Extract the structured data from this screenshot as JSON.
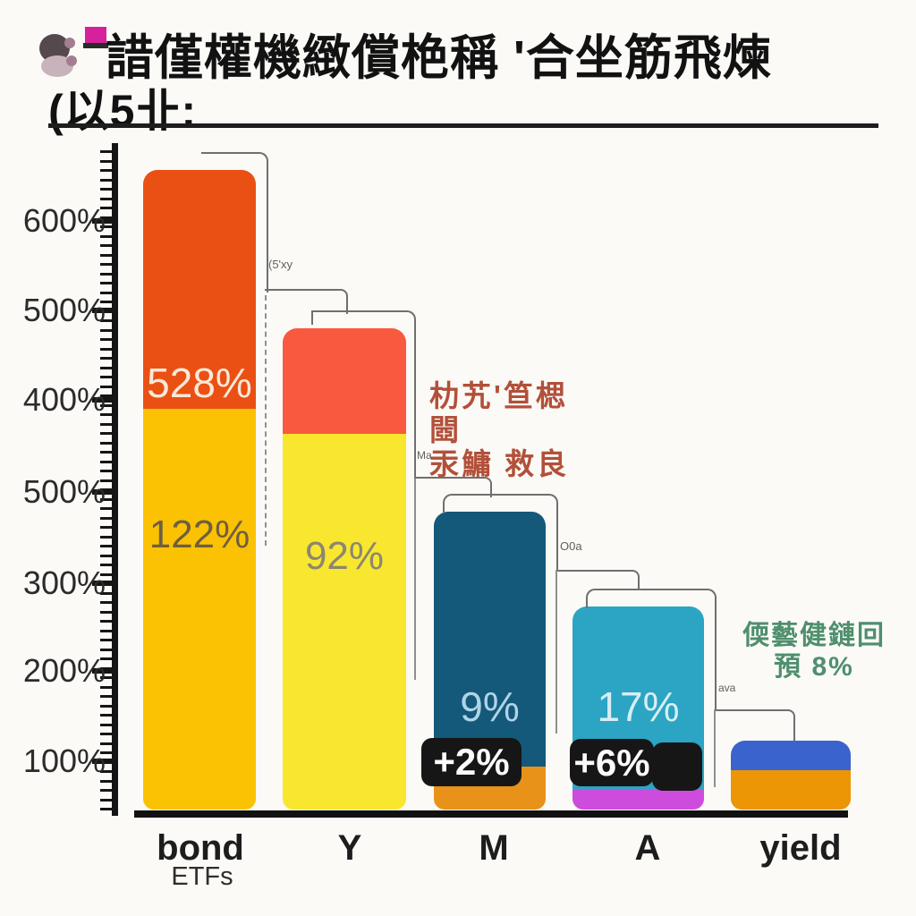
{
  "note": "AI-generated stylized bar chart; CJK-looking strings are garbled glyphs approximated below",
  "title": {
    "line1": "諎僅權機緻償栬稱 '合坐筋飛煉",
    "line2": "(以5卝:"
  },
  "decor": {
    "magenta_square_color": "#d6219c",
    "dark_blob_color": "#55494e",
    "light_blob_color": "#c8b3bc",
    "dot_color": "#a47d92"
  },
  "chart_data": {
    "type": "bar",
    "title": "garbled pseudo-CJK heading (see title.line1/line2)",
    "xlabel": "",
    "ylabel": "",
    "grid": false,
    "legend": "none",
    "y_tick_labels": [
      "600%",
      "500%",
      "400%",
      "500%",
      "300%",
      "200%",
      "100%"
    ],
    "y_axis_note": "tick labels repeat 500% twice (image artifact); minor ticks between majors",
    "categories": [
      "bond ETFs",
      "Y",
      "M",
      "A",
      "yield"
    ],
    "approx_bar_top_axis_value": [
      655,
      480,
      335,
      230,
      90
    ],
    "bars": [
      {
        "category": "bond ETFs",
        "top_color": "#ea5014",
        "bottom_color": "#fbc203",
        "labels": [
          "528%",
          "122%"
        ]
      },
      {
        "category": "Y",
        "top_color": "#f95a3f",
        "bottom_color": "#f8e72e",
        "labels": [
          "92%"
        ]
      },
      {
        "category": "M",
        "top_color": "#14587a",
        "bottom_color": "#e8921a",
        "labels": [
          "9%"
        ]
      },
      {
        "category": "A",
        "top_color": "#2ba5c3",
        "bottom_color": "#cd4cde",
        "labels": [
          "17%"
        ]
      },
      {
        "category": "yield",
        "top_color": "#3a63ce",
        "bottom_color": "#ec9505",
        "labels": []
      }
    ],
    "badges": [
      {
        "label": "+2%"
      },
      {
        "label": "+6%"
      },
      {
        "label": ""
      }
    ],
    "connector_labels": [
      "(5'xy",
      "Ma",
      "O0a",
      "ava"
    ],
    "annotations": [
      {
        "id": "mid-red",
        "lines": [
          "朸艽'笪楒閸",
          "汞鱅 救良"
        ],
        "color": "#b2503a"
      },
      {
        "id": "right-green",
        "lines": [
          "偄藝健鏈回",
          "預 8%"
        ],
        "color": "#4f8f6d"
      }
    ],
    "x_tick_labels": [
      {
        "label": "bond",
        "sublabel": "ETFs"
      },
      {
        "label": "Y"
      },
      {
        "label": "M"
      },
      {
        "label": "A"
      },
      {
        "label": "yield"
      }
    ]
  },
  "palette": {
    "background": "#fbfaf7",
    "axis": "#151515",
    "connector": "#6f6f6f",
    "badge_bg": "#161616",
    "bar_label_colors": [
      "#f8e9d7",
      "#6e5f40",
      "#8c8672",
      "#afd4e6",
      "#d8eef3"
    ]
  }
}
